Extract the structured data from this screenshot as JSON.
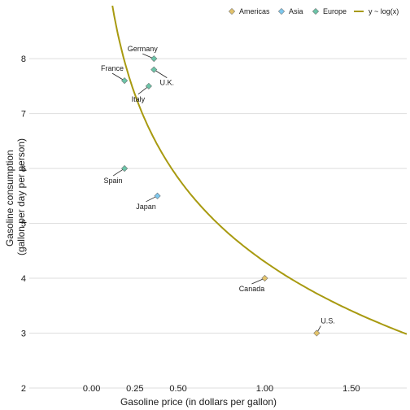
{
  "chart_data": {
    "type": "scatter",
    "xlabel": "Gasoline price (in dollars per gallon)",
    "ylabel_lines": [
      "Gasoline consumption",
      "(gallon per day per person)"
    ],
    "xlim": [
      -0.36,
      1.82
    ],
    "ylim": [
      2,
      8.95
    ],
    "xticks": [
      0.0,
      0.25,
      0.5,
      1.0,
      1.5
    ],
    "xtick_labels": [
      "0.00",
      "0.25",
      "0.50",
      "1.00",
      "1.50"
    ],
    "yticks": [
      2,
      3,
      4,
      5,
      6,
      7,
      8
    ],
    "ytick_labels": [
      "2",
      "3",
      "4",
      "5",
      "6",
      "7",
      "8"
    ],
    "grid": "horizontal",
    "legend_position": "top-right",
    "legend": [
      {
        "label": "Americas",
        "kind": "point",
        "color": "#e3c36b"
      },
      {
        "label": "Asia",
        "kind": "point",
        "color": "#7ec8ee"
      },
      {
        "label": "Europe",
        "kind": "point",
        "color": "#6cc4a8"
      },
      {
        "label": "y ~ log(x)",
        "kind": "line",
        "color": "#a89a10"
      }
    ],
    "series": [
      {
        "name": "Americas",
        "color": "#e3c36b",
        "points": [
          {
            "label": "Canada",
            "x": 1.0,
            "y": 4.0,
            "dx": -16,
            "dy": 16,
            "anchor": "middle"
          },
          {
            "label": "U.S.",
            "x": 1.3,
            "y": 3.0,
            "dx": 5,
            "dy": -12,
            "anchor": "start"
          }
        ]
      },
      {
        "name": "Asia",
        "color": "#7ec8ee",
        "points": [
          {
            "label": "Japan",
            "x": 0.38,
            "y": 5.5,
            "dx": -14,
            "dy": 16,
            "anchor": "middle"
          }
        ]
      },
      {
        "name": "Europe",
        "color": "#6cc4a8",
        "points": [
          {
            "label": "Germany",
            "x": 0.36,
            "y": 8.0,
            "dx": -14,
            "dy": -9,
            "anchor": "middle"
          },
          {
            "label": "U.K.",
            "x": 0.36,
            "y": 7.8,
            "dx": 16,
            "dy": 19,
            "anchor": "middle"
          },
          {
            "label": "France",
            "x": 0.19,
            "y": 7.6,
            "dx": -15,
            "dy": -12,
            "anchor": "middle"
          },
          {
            "label": "Italy",
            "x": 0.33,
            "y": 7.5,
            "dx": -13,
            "dy": 19,
            "anchor": "middle"
          },
          {
            "label": "Spain",
            "x": 0.19,
            "y": 6.0,
            "dx": -14,
            "dy": 18,
            "anchor": "middle"
          }
        ]
      }
    ],
    "fit": {
      "name": "y ~ log(x)",
      "model": "y = a + b*ln(x)",
      "a": 4.3,
      "b": -2.2,
      "x_from": 0.12,
      "x_to": 1.82,
      "color": "#a89a10"
    }
  }
}
